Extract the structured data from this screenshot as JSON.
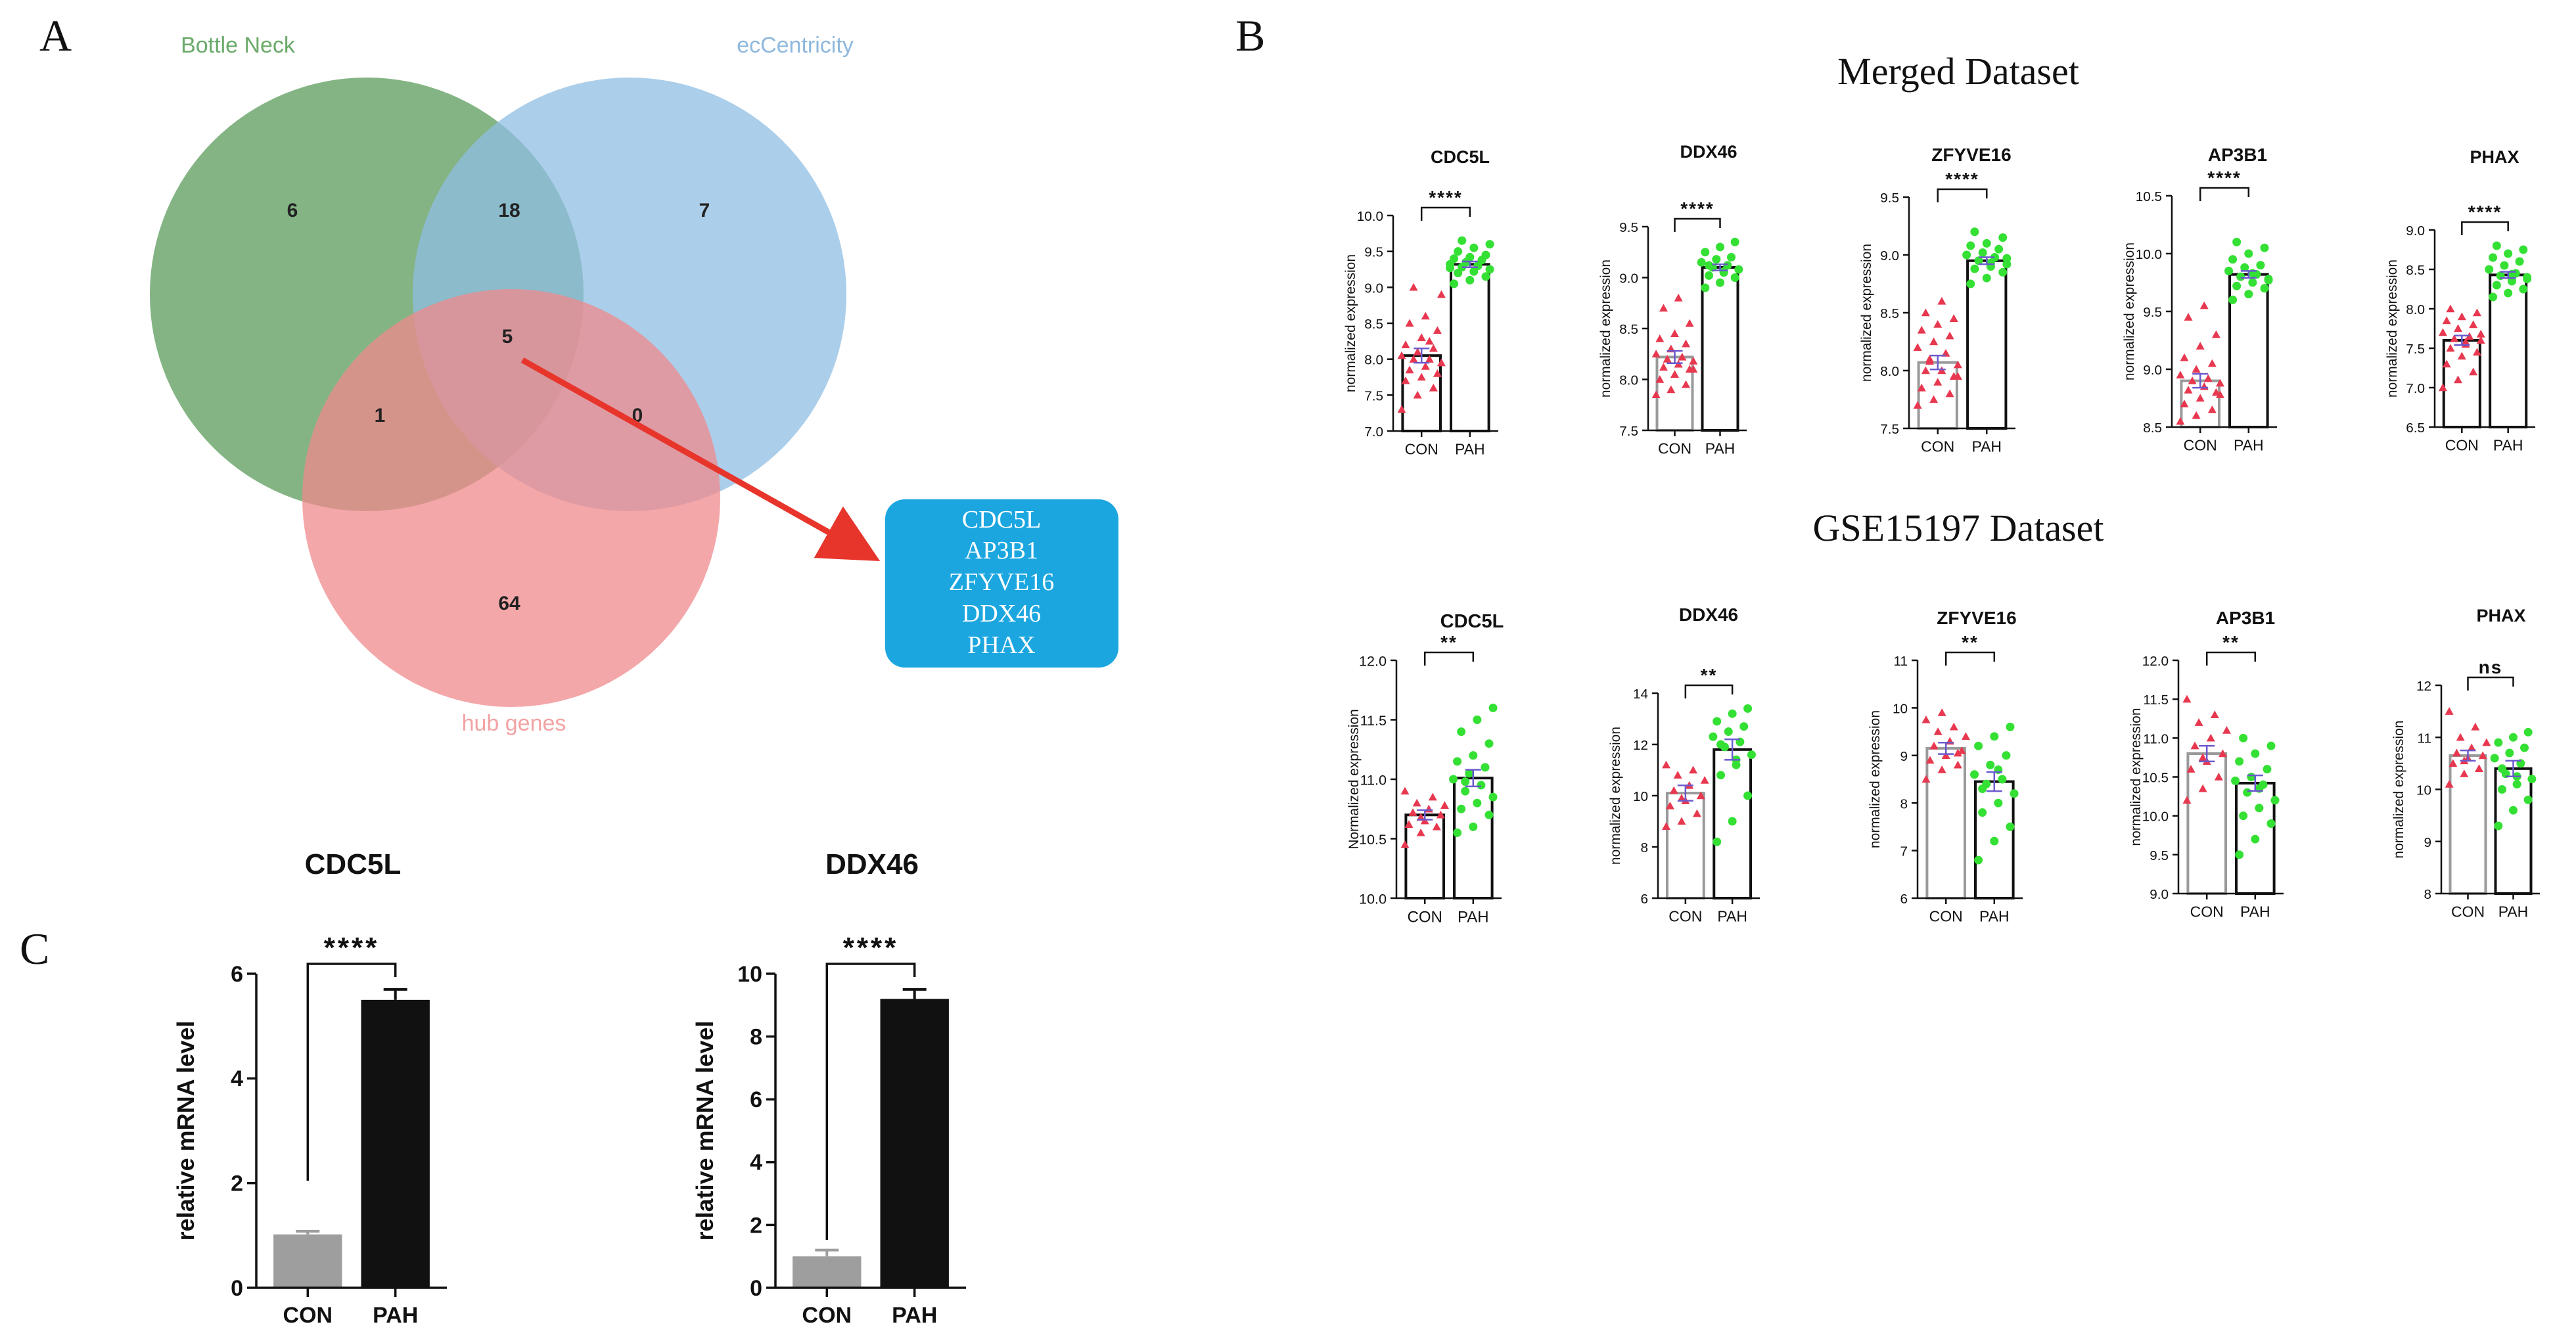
{
  "panels": {
    "a": "A",
    "b": "B",
    "c": "C"
  },
  "venn": {
    "sets": [
      {
        "name": "Bottle Neck",
        "color": "#5b9b5b",
        "label_color": "#6aaa6a"
      },
      {
        "name": "ecCentricity",
        "color": "#8fbde3",
        "label_color": "#8fb8dd"
      },
      {
        "name": "hub genes",
        "color": "#f08a8c",
        "label_color": "#f2a3a5"
      }
    ],
    "counts": {
      "bottleneck_only": "6",
      "bottleneck_eccentricity": "18",
      "eccentricity_only": "7",
      "all_three": "5",
      "bottleneck_hub": "1",
      "eccentricity_hub": "0",
      "hub_only": "64"
    },
    "genes": [
      "CDC5L",
      "AP3B1",
      "ZFYVE16",
      "DDX46",
      "PHAX"
    ],
    "gene_box_color": "#1ba6e0",
    "arrow_color": "#e8352c"
  },
  "merged_title": "Merged Dataset",
  "gse_title": "GSE15197 Dataset",
  "colors": {
    "con": "#e8384f",
    "pah": "#33e033",
    "mean_bar": "#6a5acd",
    "bar_gray": "#9e9e9e",
    "bar_black": "#111111"
  },
  "chart_data": [
    {
      "type": "scatter-bar",
      "group": "merged",
      "title": "CDC5L",
      "ylabel": "normalized expression",
      "categories": [
        "CON",
        "PAH"
      ],
      "ylim": [
        7.0,
        10.0
      ],
      "yticks": [
        "7.0",
        "7.5",
        "8.0",
        "8.5",
        "9.0",
        "9.5",
        "10.0"
      ],
      "means": [
        8.05,
        9.32
      ],
      "sem": [
        0.1,
        0.04
      ],
      "significance": "****",
      "con_bar_color": "black",
      "con_points": [
        7.3,
        7.5,
        7.6,
        7.7,
        7.75,
        7.8,
        7.85,
        7.9,
        7.95,
        8.0,
        8.0,
        8.05,
        8.1,
        8.15,
        8.2,
        8.3,
        8.4,
        8.5,
        8.6,
        8.9,
        9.0,
        8.25
      ],
      "pah_points": [
        9.05,
        9.1,
        9.15,
        9.2,
        9.22,
        9.25,
        9.28,
        9.3,
        9.32,
        9.35,
        9.38,
        9.4,
        9.42,
        9.45,
        9.5,
        9.55,
        9.6,
        9.65,
        9.3,
        9.27
      ]
    },
    {
      "type": "scatter-bar",
      "group": "merged",
      "title": "DDX46",
      "ylabel": "normalized expression",
      "categories": [
        "CON",
        "PAH"
      ],
      "ylim": [
        7.5,
        9.5
      ],
      "yticks": [
        "7.5",
        "8.0",
        "8.5",
        "9.0",
        "9.5"
      ],
      "means": [
        8.22,
        9.1
      ],
      "sem": [
        0.06,
        0.03
      ],
      "significance": "****",
      "con_bar_color": "gray",
      "con_points": [
        7.85,
        7.9,
        7.95,
        8.0,
        8.05,
        8.1,
        8.12,
        8.15,
        8.18,
        8.2,
        8.22,
        8.25,
        8.3,
        8.35,
        8.4,
        8.45,
        8.55,
        8.7,
        8.8,
        8.1
      ],
      "pah_points": [
        8.9,
        8.95,
        9.0,
        9.02,
        9.05,
        9.08,
        9.1,
        9.12,
        9.15,
        9.18,
        9.2,
        9.25,
        9.3,
        9.35,
        9.12,
        9.06
      ]
    },
    {
      "type": "scatter-bar",
      "group": "merged",
      "title": "ZFYVE16",
      "ylabel": "normalized expression",
      "categories": [
        "CON",
        "PAH"
      ],
      "ylim": [
        7.5,
        9.5
      ],
      "yticks": [
        "7.5",
        "8.0",
        "8.5",
        "9.0",
        "9.5"
      ],
      "means": [
        8.07,
        8.95
      ],
      "sem": [
        0.06,
        0.03
      ],
      "significance": "****",
      "con_bar_color": "gray",
      "con_points": [
        7.7,
        7.75,
        7.8,
        7.85,
        7.9,
        7.95,
        8.0,
        8.0,
        8.05,
        8.1,
        8.15,
        8.2,
        8.25,
        8.3,
        8.35,
        8.4,
        8.45,
        8.5,
        8.6,
        7.95,
        8.08
      ],
      "pah_points": [
        8.75,
        8.8,
        8.85,
        8.88,
        8.9,
        8.92,
        8.95,
        8.98,
        9.0,
        9.02,
        9.05,
        9.08,
        9.1,
        9.15,
        9.2,
        8.93,
        8.97
      ]
    },
    {
      "type": "scatter-bar",
      "group": "merged",
      "title": "AP3B1",
      "ylabel": "normalized expression",
      "categories": [
        "CON",
        "PAH"
      ],
      "ylim": [
        8.5,
        10.5
      ],
      "yticks": [
        "8.5",
        "9.0",
        "9.5",
        "10.0",
        "10.5"
      ],
      "means": [
        8.9,
        9.82
      ],
      "sem": [
        0.06,
        0.03
      ],
      "significance": "****",
      "con_bar_color": "gray",
      "con_points": [
        8.55,
        8.6,
        8.65,
        8.7,
        8.75,
        8.8,
        8.82,
        8.85,
        8.88,
        8.9,
        8.92,
        8.95,
        9.0,
        9.05,
        9.1,
        9.2,
        9.3,
        9.45,
        9.55,
        8.78
      ],
      "pah_points": [
        9.6,
        9.65,
        9.7,
        9.72,
        9.75,
        9.78,
        9.8,
        9.82,
        9.85,
        9.88,
        9.9,
        9.95,
        10.0,
        10.05,
        10.1,
        9.83,
        9.77
      ]
    },
    {
      "type": "scatter-bar",
      "group": "merged",
      "title": "PHAX",
      "ylabel": "normalized expression",
      "categories": [
        "CON",
        "PAH"
      ],
      "ylim": [
        6.5,
        9.0
      ],
      "yticks": [
        "6.5",
        "7.0",
        "7.5",
        "8.0",
        "8.5",
        "9.0"
      ],
      "means": [
        7.6,
        8.43
      ],
      "sem": [
        0.06,
        0.04
      ],
      "significance": "****",
      "con_bar_color": "black",
      "con_points": [
        7.0,
        7.1,
        7.2,
        7.3,
        7.4,
        7.45,
        7.5,
        7.55,
        7.6,
        7.62,
        7.65,
        7.7,
        7.75,
        7.8,
        7.85,
        7.9,
        7.95,
        8.0,
        7.58,
        7.68
      ],
      "pah_points": [
        8.15,
        8.2,
        8.25,
        8.3,
        8.35,
        8.4,
        8.42,
        8.45,
        8.5,
        8.55,
        8.6,
        8.65,
        8.7,
        8.75,
        8.8,
        8.44,
        8.38
      ]
    },
    {
      "type": "scatter-bar",
      "group": "gse",
      "title": "CDC5L",
      "ylabel": "Normalized expression",
      "categories": [
        "CON",
        "PAH"
      ],
      "ylim": [
        10.0,
        12.0
      ],
      "yticks": [
        "10.0",
        "10.5",
        "11.0",
        "11.5",
        "12.0"
      ],
      "means": [
        10.7,
        11.01
      ],
      "sem": [
        0.04,
        0.07
      ],
      "significance": "**",
      "con_bar_color": "black",
      "con_points": [
        10.45,
        10.55,
        10.6,
        10.62,
        10.65,
        10.7,
        10.72,
        10.75,
        10.78,
        10.8,
        10.85,
        10.9,
        10.68
      ],
      "pah_points": [
        10.55,
        10.6,
        10.7,
        10.75,
        10.8,
        10.85,
        10.9,
        10.95,
        11.0,
        11.05,
        11.1,
        11.15,
        11.2,
        11.3,
        11.4,
        11.5,
        11.6,
        10.98
      ]
    },
    {
      "type": "scatter-bar",
      "group": "gse",
      "title": "DDX46",
      "ylabel": "normalized expression",
      "categories": [
        "CON",
        "PAH"
      ],
      "ylim": [
        6,
        14
      ],
      "yticks": [
        "6",
        "8",
        "10",
        "12",
        "14"
      ],
      "means": [
        10.1,
        11.8
      ],
      "sem": [
        0.3,
        0.4
      ],
      "significance": "**",
      "con_bar_color": "gray",
      "con_points": [
        8.8,
        9.0,
        9.3,
        9.6,
        9.8,
        10.0,
        10.2,
        10.4,
        10.6,
        10.8,
        11.0,
        11.2,
        9.9
      ],
      "pah_points": [
        8.2,
        9.0,
        10.0,
        10.8,
        11.2,
        11.6,
        11.9,
        12.1,
        12.3,
        12.5,
        12.7,
        12.9,
        13.2,
        13.4,
        12.0,
        11.4
      ]
    },
    {
      "type": "scatter-bar",
      "group": "gse",
      "title": "ZFYVE16",
      "ylabel": "normalized expression",
      "categories": [
        "CON",
        "PAH"
      ],
      "ylim": [
        6,
        11
      ],
      "yticks": [
        "6",
        "7",
        "8",
        "9",
        "10",
        "11"
      ],
      "means": [
        9.15,
        8.45
      ],
      "sem": [
        0.12,
        0.2
      ],
      "significance": "**",
      "con_bar_color": "gray",
      "con_points": [
        8.5,
        8.7,
        8.8,
        8.9,
        9.0,
        9.1,
        9.2,
        9.3,
        9.4,
        9.5,
        9.6,
        9.75,
        9.9,
        9.05
      ],
      "pah_points": [
        6.8,
        7.2,
        7.5,
        7.8,
        8.0,
        8.2,
        8.4,
        8.5,
        8.6,
        8.8,
        9.0,
        9.2,
        9.4,
        9.6,
        8.3,
        8.7
      ]
    },
    {
      "type": "scatter-bar",
      "group": "gse",
      "title": "AP3B1",
      "ylabel": "normalized expression",
      "categories": [
        "CON",
        "PAH"
      ],
      "ylim": [
        9.0,
        12.0
      ],
      "yticks": [
        "9.0",
        "9.5",
        "10.0",
        "10.5",
        "11.0",
        "11.5",
        "12.0"
      ],
      "means": [
        10.8,
        10.42
      ],
      "sem": [
        0.1,
        0.1
      ],
      "significance": "**",
      "con_bar_color": "gray",
      "con_points": [
        10.2,
        10.35,
        10.5,
        10.6,
        10.7,
        10.8,
        10.9,
        11.0,
        11.1,
        11.2,
        11.3,
        11.5,
        10.75
      ],
      "pah_points": [
        9.5,
        9.7,
        9.9,
        10.0,
        10.1,
        10.2,
        10.3,
        10.4,
        10.45,
        10.5,
        10.6,
        10.7,
        10.8,
        10.9,
        11.0,
        10.35
      ]
    },
    {
      "type": "scatter-bar",
      "group": "gse",
      "title": "PHAX",
      "ylabel": "normalized expression",
      "categories": [
        "CON",
        "PAH"
      ],
      "ylim": [
        8,
        12
      ],
      "yticks": [
        "8",
        "9",
        "10",
        "11",
        "12"
      ],
      "means": [
        10.65,
        10.4
      ],
      "sem": [
        0.1,
        0.15
      ],
      "significance": "ns",
      "con_bar_color": "gray",
      "con_points": [
        10.1,
        10.3,
        10.4,
        10.5,
        10.6,
        10.65,
        10.7,
        10.8,
        10.9,
        11.0,
        11.2,
        11.5,
        10.55
      ],
      "pah_points": [
        9.3,
        9.6,
        9.8,
        10.0,
        10.1,
        10.2,
        10.3,
        10.5,
        10.6,
        10.7,
        10.8,
        10.9,
        11.0,
        11.1,
        10.4,
        10.25
      ]
    },
    {
      "type": "bar",
      "group": "qpcr",
      "title": "CDC5L",
      "ylabel": "relative mRNA level",
      "categories": [
        "CON",
        "PAH"
      ],
      "values": [
        1.02,
        5.5
      ],
      "errors": [
        0.06,
        0.2
      ],
      "ylim": [
        0,
        6
      ],
      "yticks": [
        "0",
        "2",
        "4",
        "6"
      ],
      "significance": "****"
    },
    {
      "type": "bar",
      "group": "qpcr",
      "title": "DDX46",
      "ylabel": "relative mRNA level",
      "categories": [
        "CON",
        "PAH"
      ],
      "values": [
        1.0,
        9.2
      ],
      "errors": [
        0.2,
        0.3
      ],
      "ylim": [
        0,
        10
      ],
      "yticks": [
        "0",
        "2",
        "4",
        "6",
        "8",
        "10"
      ],
      "significance": "****"
    }
  ]
}
